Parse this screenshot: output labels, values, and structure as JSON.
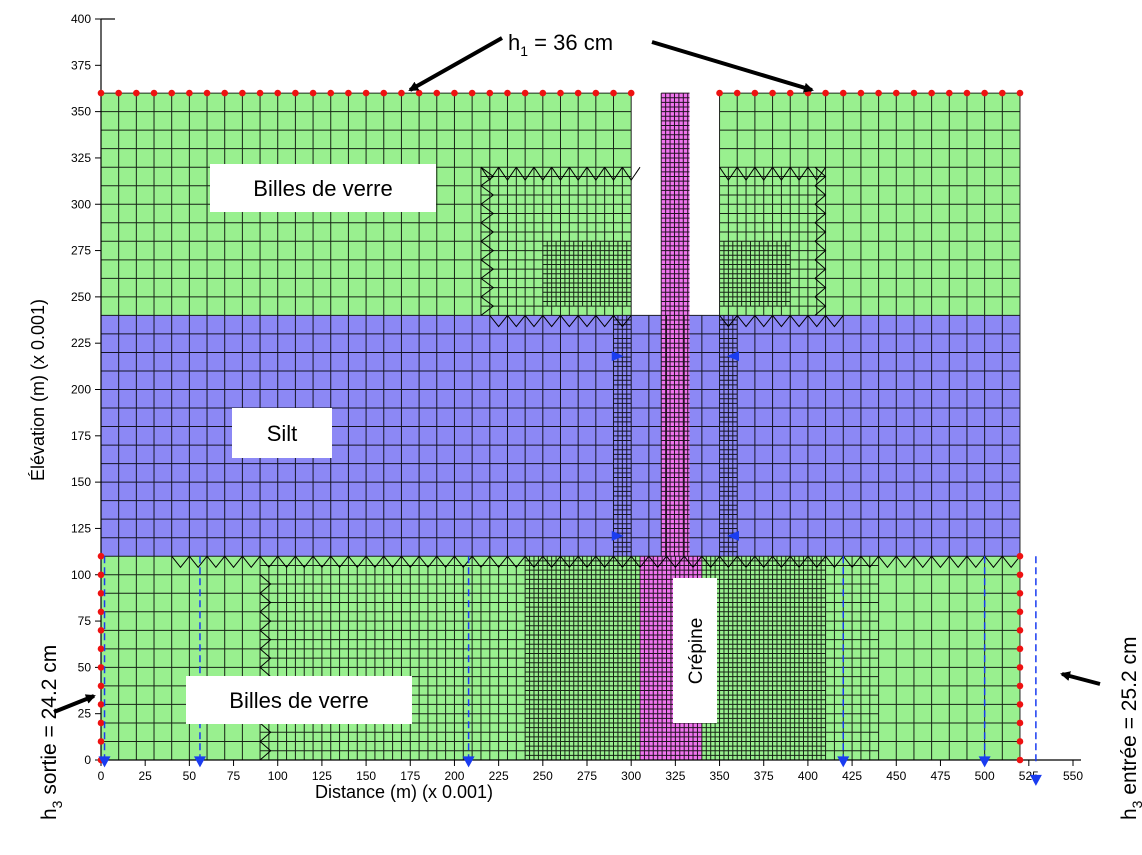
{
  "chart_data": {
    "type": "mesh",
    "xlabel": "Distance (m) (x 0.001)",
    "ylabel": "Élévation (m) (x 0.001)",
    "xlim": [
      0,
      550
    ],
    "ylim": [
      0,
      400
    ],
    "xticks": [
      0,
      25,
      50,
      75,
      100,
      125,
      150,
      175,
      200,
      225,
      250,
      275,
      300,
      325,
      350,
      375,
      400,
      425,
      450,
      475,
      500,
      525,
      550
    ],
    "yticks": [
      0,
      25,
      50,
      75,
      100,
      125,
      150,
      175,
      200,
      225,
      250,
      275,
      300,
      325,
      350,
      375,
      400
    ],
    "regions": [
      {
        "name": "Billes de verre",
        "material": "glass-beads-top-left",
        "x": [
          0,
          300
        ],
        "y": [
          240,
          360
        ],
        "color": "#99f08f"
      },
      {
        "name": "Billes de verre",
        "material": "glass-beads-top-right",
        "x": [
          350,
          520
        ],
        "y": [
          240,
          360
        ],
        "color": "#99f08f"
      },
      {
        "name": "Silt",
        "material": "silt",
        "x": [
          0,
          520
        ],
        "y": [
          110,
          240
        ],
        "color": "#8c88f5"
      },
      {
        "name": "Billes de verre",
        "material": "glass-beads-bottom",
        "x": [
          0,
          520
        ],
        "y": [
          0,
          110
        ],
        "color": "#99f08f"
      },
      {
        "name": "Crépine",
        "material": "screen",
        "x": [
          305,
          340
        ],
        "y": [
          0,
          110
        ],
        "color": "#f075ee"
      },
      {
        "name": "",
        "material": "screen-column",
        "x": [
          317,
          333
        ],
        "y": [
          110,
          360
        ],
        "color": "#f075ee"
      }
    ],
    "boundary_top_y": 360,
    "annotations": {
      "h1": {
        "prefix": "h",
        "sub": "1",
        "rest": " = 36 cm"
      },
      "h3_sortie": {
        "prefix": "h",
        "sub": "3",
        "rest": " sortie = 24.2 cm"
      },
      "h3_entree": {
        "prefix": "h",
        "sub": "3",
        "rest": " entrée = 25.2 cm"
      }
    },
    "region_labels": {
      "top": "Billes de verre",
      "middle": "Silt",
      "bottom": "Billes de verre",
      "screen": "Crépine"
    }
  },
  "colors": {
    "glass_beads": "#99f08f",
    "silt": "#8c88f5",
    "screen": "#f075ee",
    "mesh_line": "#000000",
    "boundary_node": "#ee1111",
    "flux_marker": "#1a3cf0"
  }
}
